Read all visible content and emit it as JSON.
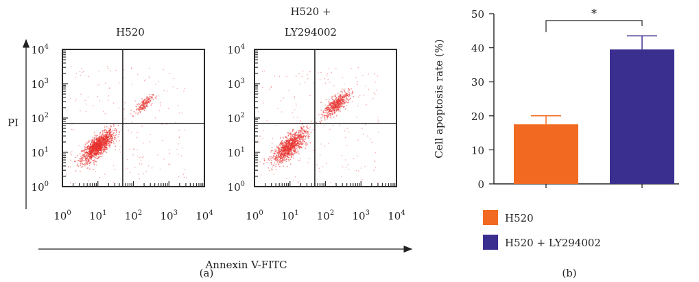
{
  "colors": {
    "dot": "#e8302c",
    "frame": "#2a2a2a",
    "bar_h520": "#f26a21",
    "bar_ly": "#3a2f8f"
  },
  "panel_a": {
    "caption": "(a)",
    "y_axis_label": "PI",
    "x_axis_label": "Annexin V-FITC",
    "tick_base": "10",
    "tick_exponents": [
      "0",
      "1",
      "2",
      "3",
      "4"
    ],
    "plot_left_title": "H520",
    "plot_right_title_line1": "H520 +",
    "plot_right_title_line2": "LY294002"
  },
  "panel_b": {
    "caption": "(b)",
    "significance": "*",
    "legend": [
      {
        "label": "H520",
        "color": "#f26a21"
      },
      {
        "label": "H520 + LY294002",
        "color": "#3a2f8f"
      }
    ]
  },
  "chart_data": [
    {
      "type": "scatter",
      "title": "H520",
      "xlabel": "Annexin V-FITC",
      "ylabel": "PI",
      "x_scale": "log",
      "y_scale": "log",
      "xlim": [
        1,
        10000
      ],
      "ylim": [
        1,
        10000
      ],
      "gates": {
        "x": 50,
        "y": 70
      },
      "populations": [
        {
          "name": "live",
          "center": [
            10,
            15
          ],
          "spread_decades": 0.22,
          "count": 1300
        },
        {
          "name": "late",
          "center": [
            200,
            250
          ],
          "spread_decades": 0.12,
          "count": 170
        }
      ]
    },
    {
      "type": "scatter",
      "title": "H520 + LY294002",
      "xlabel": "Annexin V-FITC",
      "ylabel": "PI",
      "x_scale": "log",
      "y_scale": "log",
      "xlim": [
        1,
        10000
      ],
      "ylim": [
        1,
        10000
      ],
      "gates": {
        "x": 50,
        "y": 70
      },
      "populations": [
        {
          "name": "live",
          "center": [
            10,
            15
          ],
          "spread_decades": 0.24,
          "count": 1000
        },
        {
          "name": "late",
          "center": [
            200,
            250
          ],
          "spread_decades": 0.18,
          "count": 500
        }
      ]
    },
    {
      "type": "bar",
      "categories": [
        "H520",
        "H520 + LY294002"
      ],
      "values": [
        17.5,
        39.5
      ],
      "errors": [
        2.5,
        4.0
      ],
      "ylabel": "Cell apoptosis rate (%)",
      "ylim": [
        0,
        50
      ],
      "yticks": [
        0,
        10,
        20,
        30,
        40,
        50
      ],
      "grid": false,
      "legend_position": "bottom-left"
    }
  ]
}
